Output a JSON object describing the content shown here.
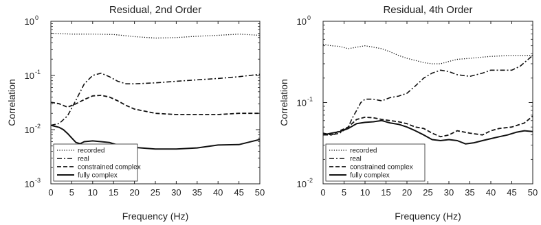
{
  "chart_data": [
    {
      "type": "line",
      "title": "Residual, 2nd Order",
      "xlabel": "Frequency (Hz)",
      "ylabel": "Correlation",
      "xlim": [
        0,
        50
      ],
      "ylim": [
        0.001,
        1
      ],
      "yscale": "log",
      "x_ticks": [
        "0",
        "5",
        "10",
        "15",
        "20",
        "25",
        "30",
        "35",
        "40",
        "45",
        "50"
      ],
      "y_ticks": [
        {
          "base": "10",
          "exp": "-3"
        },
        {
          "base": "10",
          "exp": "-2"
        },
        {
          "base": "10",
          "exp": "-1"
        },
        {
          "base": "10",
          "exp": "0"
        }
      ],
      "legend_position": "bottom-left",
      "series": [
        {
          "name": "recorded",
          "style": "dotted",
          "x": [
            0,
            5,
            10,
            15,
            20,
            25,
            30,
            35,
            40,
            45,
            50
          ],
          "y": [
            0.6,
            0.58,
            0.58,
            0.57,
            0.52,
            0.49,
            0.5,
            0.53,
            0.55,
            0.58,
            0.55
          ]
        },
        {
          "name": "real",
          "style": "dashdot",
          "x": [
            0,
            2,
            4,
            6,
            8,
            10,
            12,
            14,
            16,
            18,
            20,
            25,
            30,
            35,
            40,
            45,
            50
          ],
          "y": [
            0.012,
            0.013,
            0.018,
            0.035,
            0.07,
            0.1,
            0.11,
            0.095,
            0.078,
            0.07,
            0.07,
            0.073,
            0.078,
            0.083,
            0.088,
            0.095,
            0.105
          ]
        },
        {
          "name": "constrained complex",
          "style": "dashed",
          "x": [
            0,
            2,
            4,
            6,
            8,
            10,
            12,
            14,
            16,
            18,
            20,
            25,
            30,
            35,
            40,
            45,
            50
          ],
          "y": [
            0.032,
            0.03,
            0.026,
            0.03,
            0.036,
            0.042,
            0.043,
            0.04,
            0.034,
            0.028,
            0.024,
            0.02,
            0.019,
            0.019,
            0.019,
            0.02,
            0.02
          ]
        },
        {
          "name": "fully complex",
          "style": "solid",
          "x": [
            0,
            2,
            3,
            4,
            5,
            6,
            7,
            8,
            10,
            12,
            14,
            16,
            18,
            20,
            25,
            30,
            35,
            40,
            45,
            50
          ],
          "y": [
            0.012,
            0.011,
            0.01,
            0.0085,
            0.007,
            0.0058,
            0.0055,
            0.006,
            0.0062,
            0.006,
            0.0058,
            0.0052,
            0.005,
            0.0047,
            0.0044,
            0.0044,
            0.0046,
            0.0052,
            0.0053,
            0.0066
          ]
        }
      ]
    },
    {
      "type": "line",
      "title": "Residual, 4th Order",
      "xlabel": "Frequency (Hz)",
      "ylabel": "Correlation",
      "xlim": [
        0,
        50
      ],
      "ylim": [
        0.01,
        1
      ],
      "yscale": "log",
      "x_ticks": [
        "0",
        "5",
        "10",
        "15",
        "20",
        "25",
        "30",
        "35",
        "40",
        "45",
        "50"
      ],
      "y_ticks": [
        {
          "base": "10",
          "exp": "-2"
        },
        {
          "base": "10",
          "exp": "-1"
        },
        {
          "base": "10",
          "exp": "0"
        }
      ],
      "legend_position": "bottom-left",
      "series": [
        {
          "name": "recorded",
          "style": "dotted",
          "x": [
            0,
            2,
            4,
            6,
            8,
            10,
            12,
            14,
            16,
            18,
            20,
            22,
            24,
            26,
            28,
            30,
            32,
            35,
            40,
            45,
            50
          ],
          "y": [
            0.52,
            0.5,
            0.49,
            0.46,
            0.48,
            0.5,
            0.48,
            0.46,
            0.42,
            0.38,
            0.35,
            0.33,
            0.31,
            0.3,
            0.3,
            0.32,
            0.34,
            0.35,
            0.37,
            0.38,
            0.38
          ]
        },
        {
          "name": "real",
          "style": "dashdot",
          "x": [
            0,
            2,
            4,
            6,
            7,
            8,
            9,
            10,
            12,
            14,
            16,
            18,
            20,
            22,
            24,
            26,
            28,
            30,
            32,
            35,
            38,
            40,
            42,
            45,
            47,
            50
          ],
          "y": [
            0.04,
            0.04,
            0.042,
            0.05,
            0.065,
            0.08,
            0.1,
            0.11,
            0.11,
            0.105,
            0.115,
            0.12,
            0.13,
            0.16,
            0.2,
            0.23,
            0.25,
            0.24,
            0.22,
            0.21,
            0.23,
            0.25,
            0.25,
            0.25,
            0.28,
            0.38
          ]
        },
        {
          "name": "constrained complex",
          "style": "dashed",
          "x": [
            0,
            2,
            4,
            6,
            8,
            10,
            12,
            14,
            16,
            18,
            20,
            22,
            24,
            26,
            28,
            30,
            32,
            35,
            38,
            40,
            42,
            45,
            48,
            50
          ],
          "y": [
            0.042,
            0.04,
            0.045,
            0.05,
            0.062,
            0.066,
            0.065,
            0.062,
            0.06,
            0.058,
            0.055,
            0.05,
            0.048,
            0.042,
            0.038,
            0.04,
            0.045,
            0.042,
            0.04,
            0.045,
            0.048,
            0.05,
            0.056,
            0.068
          ]
        },
        {
          "name": "fully complex",
          "style": "solid",
          "x": [
            0,
            2,
            4,
            6,
            8,
            10,
            12,
            14,
            16,
            18,
            20,
            22,
            24,
            26,
            28,
            30,
            32,
            34,
            36,
            38,
            40,
            42,
            44,
            46,
            48,
            50
          ],
          "y": [
            0.04,
            0.042,
            0.044,
            0.048,
            0.055,
            0.057,
            0.058,
            0.06,
            0.056,
            0.054,
            0.05,
            0.045,
            0.04,
            0.035,
            0.034,
            0.035,
            0.034,
            0.031,
            0.032,
            0.034,
            0.036,
            0.038,
            0.04,
            0.043,
            0.045,
            0.044
          ]
        }
      ]
    }
  ]
}
